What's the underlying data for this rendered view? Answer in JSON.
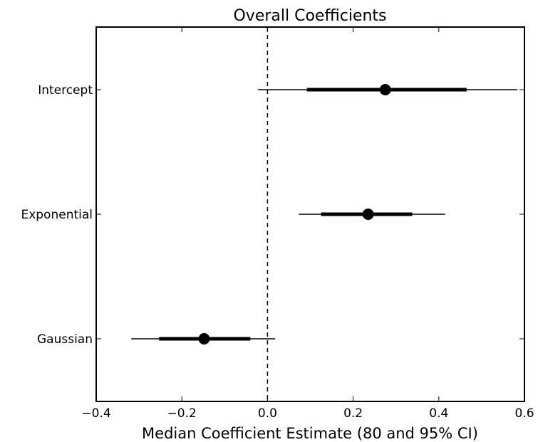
{
  "chart_data": {
    "type": "forest",
    "title": "Overall Coefficients",
    "xlabel": "Median Coefficient Estimate (80 and 95% CI)",
    "ylabel": "",
    "xlim": [
      -0.4,
      0.6
    ],
    "xticks": [
      -0.4,
      -0.2,
      0.0,
      0.2,
      0.4,
      0.6
    ],
    "xtick_labels": [
      "−0.4",
      "−0.2",
      "0.0",
      "0.2",
      "0.4",
      "0.6"
    ],
    "reference_line": 0.0,
    "grid": false,
    "categories": [
      "Intercept",
      "Exponential",
      "Gaussian"
    ],
    "estimates": [
      {
        "label": "Intercept",
        "median": 0.275,
        "ci80": [
          0.092,
          0.465
        ],
        "ci95": [
          -0.022,
          0.583
        ]
      },
      {
        "label": "Exponential",
        "median": 0.235,
        "ci80": [
          0.125,
          0.338
        ],
        "ci95": [
          0.073,
          0.415
        ]
      },
      {
        "label": "Gaussian",
        "median": -0.148,
        "ci80": [
          -0.253,
          -0.04
        ],
        "ci95": [
          -0.318,
          0.018
        ]
      }
    ]
  }
}
